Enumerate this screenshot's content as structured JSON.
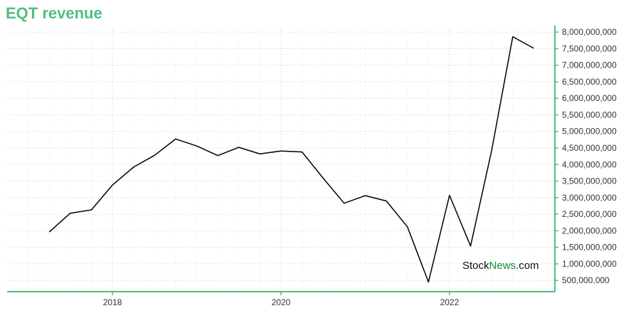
{
  "title": "EQT revenue",
  "watermark": {
    "part1": "Stock",
    "part2": "News",
    "part3": ".com"
  },
  "colors": {
    "accent": "#4fbf7f",
    "line": "#000000",
    "grid": "#a8dcc0"
  },
  "chart_data": {
    "type": "line",
    "title": "EQT revenue",
    "xlabel": "",
    "ylabel": "",
    "x_ticks": [
      "2018",
      "2020",
      "2022"
    ],
    "x_tick_values": [
      2018,
      2020,
      2022
    ],
    "y_ticks": [
      "500,000,000",
      "1,000,000,000",
      "1,500,000,000",
      "2,000,000,000",
      "2,500,000,000",
      "3,000,000,000",
      "3,500,000,000",
      "4,000,000,000",
      "4,500,000,000",
      "5,000,000,000",
      "5,500,000,000",
      "6,000,000,000",
      "6,500,000,000",
      "7,000,000,000",
      "7,500,000,000",
      "8,000,000,000"
    ],
    "y_tick_values": [
      500000000,
      1000000000,
      1500000000,
      2000000000,
      2500000000,
      3000000000,
      3500000000,
      4000000000,
      4500000000,
      5000000000,
      5500000000,
      6000000000,
      6500000000,
      7000000000,
      7500000000,
      8000000000
    ],
    "xlim": [
      2016.75,
      2023.25
    ],
    "ylim": [
      160000000,
      8110000000
    ],
    "grid": true,
    "y_axis_side": "right",
    "series": [
      {
        "x": [
          2017.25,
          2017.5,
          2017.75,
          2018.0,
          2018.25,
          2018.5,
          2018.75,
          2019.0,
          2019.25,
          2019.5,
          2019.75,
          2020.0,
          2020.25,
          2020.5,
          2020.75,
          2021.0,
          2021.25,
          2021.5,
          2021.75,
          2022.0,
          2022.25,
          2022.5,
          2022.75,
          2023.0
        ],
        "y": [
          1960000000,
          2530000000,
          2630000000,
          3380000000,
          3920000000,
          4280000000,
          4770000000,
          4560000000,
          4270000000,
          4520000000,
          4320000000,
          4410000000,
          4380000000,
          3590000000,
          2830000000,
          3060000000,
          2900000000,
          2120000000,
          450000000,
          3070000000,
          1540000000,
          4430000000,
          7860000000,
          7510000000
        ]
      }
    ]
  }
}
